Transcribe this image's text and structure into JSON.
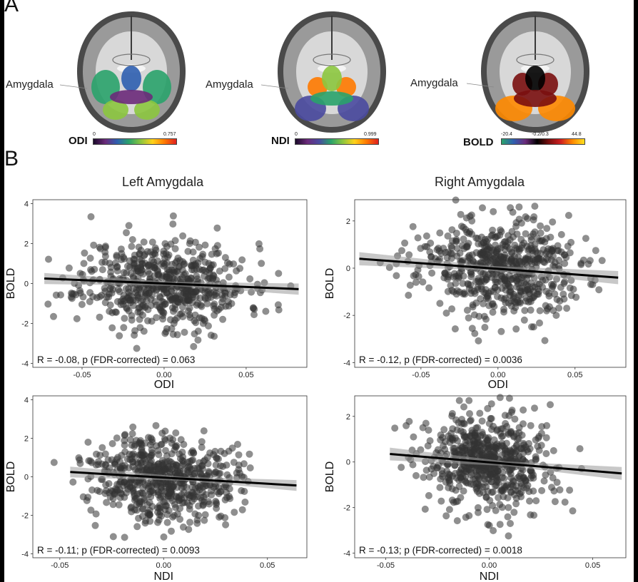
{
  "panel_a": {
    "letter": "A",
    "maps": [
      {
        "id": "odi",
        "region_label": "Amygdala",
        "metric_label": "ODI",
        "cbar_min": "0",
        "cbar_mid": "",
        "cbar_max": "0.757",
        "palette": [
          "#1a0a2a",
          "#6b2a7a",
          "#2f5fb0",
          "#2aa36b",
          "#8cc63f",
          "#ffd21a",
          "#ff7a00",
          "#e02020"
        ]
      },
      {
        "id": "ndi",
        "region_label": "Amygdala",
        "metric_label": "NDI",
        "cbar_min": "0",
        "cbar_mid": "",
        "cbar_max": "0.999",
        "palette": [
          "#1a0a2a",
          "#6b2a7a",
          "#4a4aa0",
          "#2aa36b",
          "#8cc63f",
          "#ffd21a",
          "#ff7a00",
          "#e02020"
        ]
      },
      {
        "id": "bold",
        "region_label": "Amygdala",
        "metric_label": "BOLD",
        "cbar_min": "-20.4",
        "cbar_mid": "-0.2/0.3",
        "cbar_max": "44.8",
        "palette": [
          "#2aa36b",
          "#2f5fb0",
          "#6b2a7a",
          "#000000",
          "#7a0f0f",
          "#d02020",
          "#ff8a00",
          "#ffe020"
        ]
      }
    ]
  },
  "panel_b": {
    "letter": "B",
    "col_titles": [
      "Left Amygdala",
      "Right Amygdala"
    ]
  },
  "chart_data": [
    {
      "type": "scatter",
      "title": "Left Amygdala",
      "xlabel": "ODI",
      "ylabel": "BOLD",
      "xlim": [
        -0.08,
        0.087
      ],
      "ylim": [
        -4.2,
        4.2
      ],
      "xticks": [
        -0.05,
        0.0,
        0.05
      ],
      "xtick_labels": [
        "-0.05",
        "0.00",
        "0.05"
      ],
      "yticks": [
        -4,
        -2,
        0,
        2,
        4
      ],
      "ytick_labels": [
        "-4",
        "-2",
        "0",
        "2",
        "4"
      ],
      "fit": {
        "x": [
          -0.073,
          0.082
        ],
        "y": [
          0.25,
          -0.28
        ]
      },
      "annotation": "R = -0.08, p (FDR-corrected) = 0.063",
      "n_points": 620,
      "point_sd": [
        0.025,
        1.1
      ],
      "seed": 11
    },
    {
      "type": "scatter",
      "title": "Right Amygdala",
      "xlabel": "ODI",
      "ylabel": "BOLD",
      "xlim": [
        -0.093,
        0.083
      ],
      "ylim": [
        -4.2,
        2.9
      ],
      "xticks": [
        -0.05,
        0.0,
        0.05
      ],
      "xtick_labels": [
        "-0.05",
        "0.00",
        "0.05"
      ],
      "yticks": [
        -4,
        -2,
        0,
        2
      ],
      "ytick_labels": [
        "-4",
        "-2",
        "0",
        "2"
      ],
      "fit": {
        "x": [
          -0.09,
          0.078
        ],
        "y": [
          0.4,
          -0.4
        ]
      },
      "annotation": "R = -0.12, p (FDR-corrected) = 0.0036",
      "n_points": 620,
      "point_sd": [
        0.026,
        1.05
      ],
      "seed": 23
    },
    {
      "type": "scatter",
      "title": "",
      "xlabel": "NDI",
      "ylabel": "BOLD",
      "xlim": [
        -0.063,
        0.069
      ],
      "ylim": [
        -4.2,
        4.2
      ],
      "xticks": [
        -0.05,
        0.0,
        0.05
      ],
      "xtick_labels": [
        "-0.05",
        "0.00",
        "0.05"
      ],
      "yticks": [
        -4,
        -2,
        0,
        2,
        4
      ],
      "ytick_labels": [
        "-4",
        "-2",
        "0",
        "2",
        "4"
      ],
      "fit": {
        "x": [
          -0.045,
          0.064
        ],
        "y": [
          0.25,
          -0.45
        ]
      },
      "annotation": "R = -0.11; p (FDR-corrected) = 0.0093",
      "n_points": 620,
      "point_sd": [
        0.017,
        1.1
      ],
      "seed": 37
    },
    {
      "type": "scatter",
      "title": "",
      "xlabel": "NDI",
      "ylabel": "BOLD",
      "xlim": [
        -0.065,
        0.066
      ],
      "ylim": [
        -4.2,
        2.9
      ],
      "xticks": [
        -0.05,
        0.0,
        0.05
      ],
      "xtick_labels": [
        "-0.05",
        "0.00",
        "0.05"
      ],
      "yticks": [
        -4,
        -2,
        0,
        2
      ],
      "ytick_labels": [
        "-4",
        "-2",
        "0",
        "2"
      ],
      "fit": {
        "x": [
          -0.048,
          0.064
        ],
        "y": [
          0.35,
          -0.5
        ]
      },
      "annotation": "R = -0.13; p (FDR-corrected) = 0.0018",
      "n_points": 620,
      "point_sd": [
        0.016,
        1.05
      ],
      "seed": 53
    }
  ]
}
